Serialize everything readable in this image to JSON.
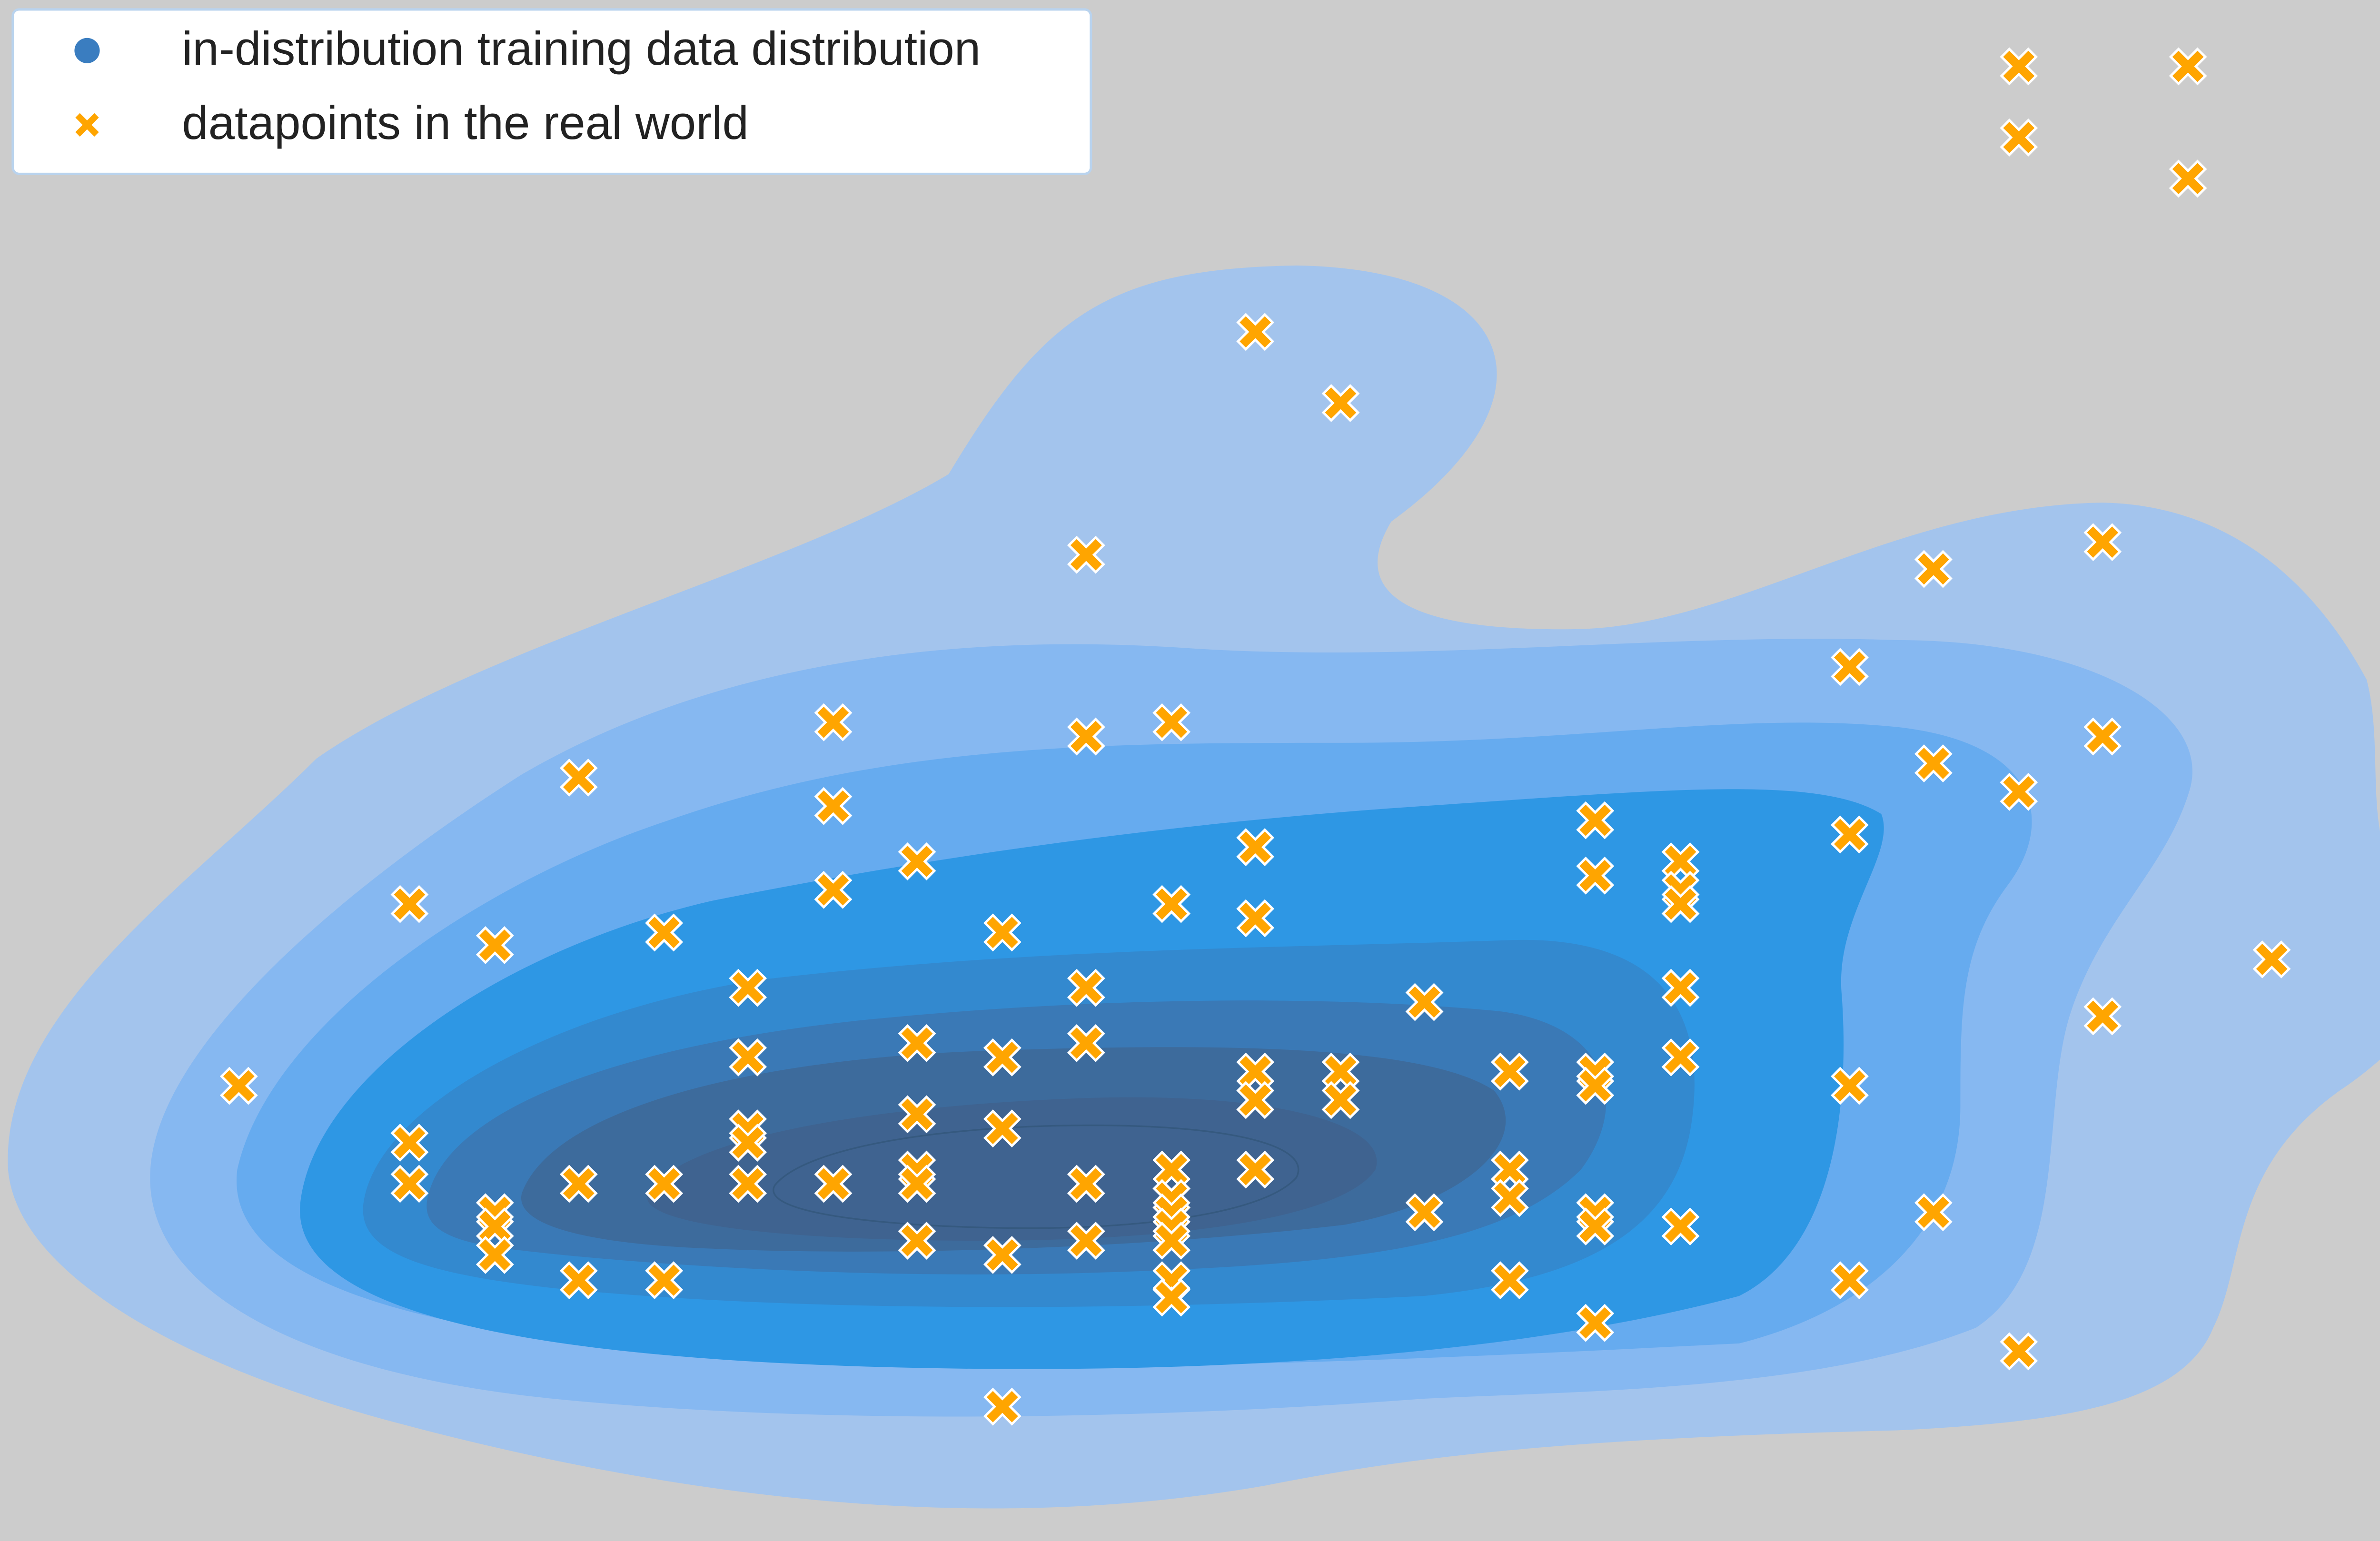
{
  "chart_data": {
    "type": "scatter",
    "xlim": [
      0,
      1568
    ],
    "ylim": [
      975,
      0
    ],
    "contour_colors": [
      "#a3c4ed",
      "#86b8f1",
      "#66abef",
      "#2e97e4",
      "#3389cf",
      "#3a79b6",
      "#3d6b9c",
      "#3f6390"
    ],
    "legend": "upper left",
    "series": [
      {
        "name": "in-distribution training data distribution",
        "color": "#3a7dc0"
      },
      {
        "name": "datapoints in the real world",
        "color": "#ffa500",
        "x": [
          1277,
          1384,
          1277,
          1384,
          794,
          848,
          687,
          1223,
          1330,
          1170,
          527,
          687,
          741,
          366,
          1223,
          1330,
          1277,
          527,
          1009,
          1170,
          794,
          580,
          1009,
          1063,
          1063,
          1063,
          259,
          527,
          741,
          794,
          313,
          420,
          634,
          1437,
          473,
          687,
          901,
          1063,
          1330,
          580,
          687,
          473,
          634,
          1063,
          151,
          794,
          848,
          955,
          1009,
          1009,
          794,
          848,
          1170,
          473,
          473,
          580,
          634,
          259,
          580,
          741,
          794,
          955,
          259,
          366,
          420,
          473,
          527,
          580,
          687,
          741,
          955,
          313,
          313,
          741,
          901,
          1009,
          1009,
          1223,
          1063,
          741,
          313,
          580,
          687,
          634,
          741,
          366,
          420,
          741,
          741,
          955,
          1170,
          1009,
          1277,
          634
        ],
        "y": [
          42,
          42,
          87,
          113,
          210,
          255,
          351,
          360,
          343,
          422,
          457,
          466,
          457,
          492,
          483,
          466,
          501,
          510,
          519,
          528,
          536,
          545,
          554,
          545,
          563,
          572,
          572,
          563,
          572,
          581,
          598,
          590,
          590,
          607,
          625,
          625,
          634,
          625,
          643,
          660,
          660,
          669,
          669,
          669,
          687,
          678,
          678,
          678,
          678,
          687,
          696,
          696,
          687,
          714,
          723,
          705,
          714,
          723,
          740,
          740,
          740,
          740,
          749,
          749,
          749,
          749,
          749,
          749,
          749,
          758,
          758,
          767,
          776,
          767,
          767,
          767,
          776,
          767,
          776,
          776,
          794,
          785,
          785,
          794,
          785,
          810,
          810,
          810,
          821,
          810,
          810,
          837,
          855,
          890
        ]
      }
    ]
  }
}
